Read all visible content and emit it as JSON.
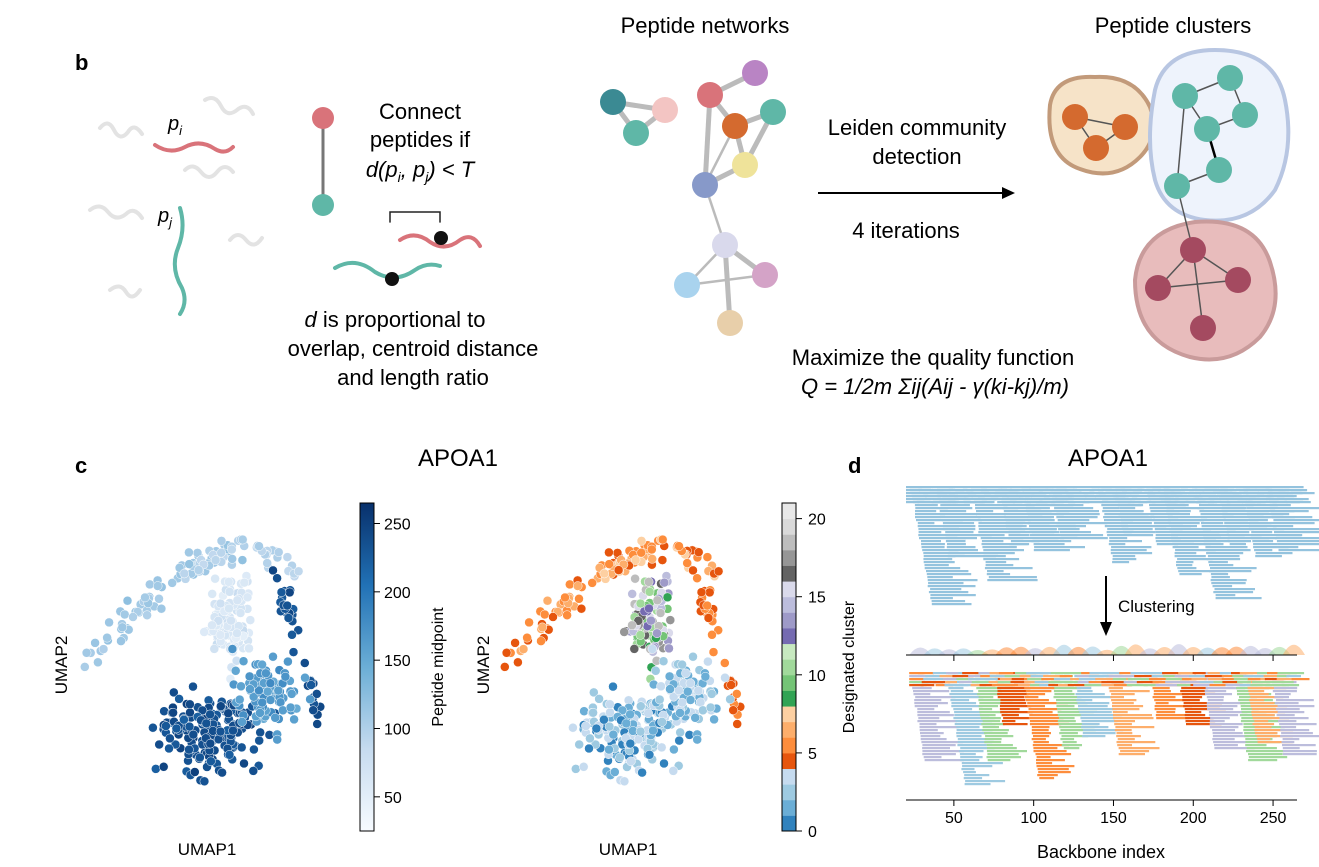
{
  "panel_b": {
    "label": "b",
    "pi": "p",
    "pi_sub": "i",
    "pj": "p",
    "pj_sub": "j",
    "connect_line1": "Connect",
    "connect_line2": "peptides if",
    "connect_line3": "d(p",
    "connect_line3_sub1": "i",
    "connect_line3_mid": ", p",
    "connect_line3_sub2": "j",
    "connect_line3_end": ") < T",
    "d_italic": "d",
    "prop_line1": " is proportional to",
    "prop_line2": "overlap, centroid distance",
    "prop_line3": "and length ratio",
    "networks_title": "Peptide networks",
    "clusters_title": "Peptide clusters",
    "leiden_line1": "Leiden community",
    "leiden_line2": "detection",
    "iterations": "4 iterations",
    "maximize": "Maximize the quality function",
    "formula": "Q = 1/2m Σij(Aij - γ(ki-kj)/m)",
    "colors": {
      "red": "#d9737a",
      "teal": "#5fb7a7",
      "darkteal": "#3b8a93",
      "pink": "#f3c5c3",
      "purple": "#b984c4",
      "orange": "#d46a2f",
      "yellow": "#efe39a",
      "blue": "#8799c9",
      "lavender": "#d9d9ec",
      "lightblue": "#a9d3ee",
      "mauve": "#d4a3c7",
      "tan": "#e8cfaa",
      "crimson": "#a44a60"
    }
  },
  "panel_c": {
    "label": "c",
    "title": "APOA1",
    "xlabel_left": "UMAP1",
    "ylabel_left": "UMAP2",
    "xlabel_right": "UMAP1",
    "ylabel_right": "UMAP2",
    "colorbar_left_label": "Peptide midpoint",
    "colorbar_left_ticks": [
      "50",
      "100",
      "150",
      "200",
      "250"
    ],
    "colorbar_right_label": "Designated cluster",
    "colorbar_right_ticks": [
      "0",
      "5",
      "10",
      "15",
      "20"
    ]
  },
  "panel_d": {
    "label": "d",
    "title": "APOA1",
    "clustering": "Clustering",
    "xlabel": "Backbone index",
    "top_axis_ticks": [
      "50",
      "100",
      "150",
      "200",
      "250"
    ],
    "bottom_axis_ticks": [
      "50",
      "100",
      "150",
      "200",
      "250"
    ]
  },
  "chart_data": [
    {
      "type": "scatter",
      "title": "APOA1",
      "xlabel": "UMAP1",
      "ylabel": "UMAP2",
      "colorbar": {
        "label": "Peptide midpoint",
        "range": [
          25,
          265
        ],
        "colormap": "Blues"
      }
    },
    {
      "type": "scatter",
      "xlabel": "UMAP1",
      "ylabel": "UMAP2",
      "colorbar": {
        "label": "Designated cluster",
        "range": [
          0,
          21
        ],
        "colormap": "tab20c"
      }
    },
    {
      "type": "bar",
      "title": "APOA1",
      "xlabel": "Backbone index",
      "xlim": [
        20,
        265
      ],
      "xticks": [
        50,
        100,
        150,
        200,
        250
      ]
    }
  ]
}
